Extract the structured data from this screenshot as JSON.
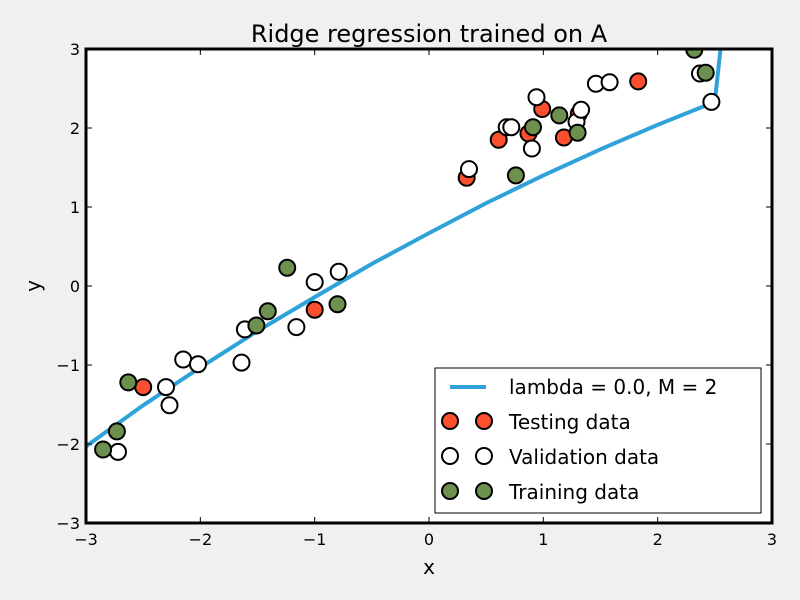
{
  "chart_data": {
    "type": "scatter",
    "title": "Ridge regression trained on A",
    "xlabel": "x",
    "ylabel": "y",
    "xlim": [
      -3,
      3
    ],
    "ylim": [
      -3,
      3
    ],
    "x_ticks": [
      -3,
      -2,
      -1,
      0,
      1,
      2,
      3
    ],
    "y_ticks": [
      -3,
      -2,
      -1,
      0,
      1,
      2,
      3
    ],
    "grid": false,
    "legend": "lower-right",
    "fit_line": {
      "name": "lambda = 0.0, M = 2",
      "color": "#30a2da",
      "x": [
        -3.0,
        -2.5,
        -2.0,
        -1.5,
        -1.0,
        -0.5,
        0.0,
        0.5,
        1.0,
        1.5,
        2.0,
        2.5,
        2.55
      ],
      "y": [
        -2.03,
        -1.51,
        -1.03,
        -0.57,
        -0.14,
        0.28,
        0.67,
        1.05,
        1.4,
        1.73,
        2.04,
        2.33,
        3.0
      ]
    },
    "series": [
      {
        "name": "Testing data",
        "color": "#fc4f30",
        "x": [
          -2.5,
          -1.0,
          0.33,
          0.61,
          0.87,
          0.99,
          1.18,
          1.31,
          1.83
        ],
        "y": [
          -1.28,
          -0.3,
          1.37,
          1.85,
          1.93,
          2.24,
          1.88,
          2.18,
          2.59
        ]
      },
      {
        "name": "Validation data",
        "color": "#ffffff",
        "x": [
          -2.72,
          -2.3,
          -2.27,
          -2.15,
          -2.02,
          -1.64,
          -1.61,
          -1.16,
          -1.0,
          -0.79,
          0.35,
          0.68,
          0.72,
          0.9,
          0.94,
          1.29,
          1.33,
          1.46,
          1.58,
          2.37,
          2.47
        ],
        "y": [
          -2.1,
          -1.28,
          -1.51,
          -0.93,
          -0.99,
          -0.97,
          -0.55,
          -0.52,
          0.05,
          0.18,
          1.48,
          2.01,
          2.01,
          1.74,
          2.39,
          2.08,
          2.23,
          2.56,
          2.58,
          2.69,
          2.33
        ]
      },
      {
        "name": "Training data",
        "color": "#6d904f",
        "x": [
          -2.85,
          -2.73,
          -2.63,
          -1.51,
          -1.41,
          -1.24,
          -0.8,
          0.76,
          0.91,
          1.14,
          1.3,
          2.32,
          2.42
        ],
        "y": [
          -2.07,
          -1.84,
          -1.22,
          -0.5,
          -0.32,
          0.23,
          -0.23,
          1.4,
          2.01,
          2.16,
          1.94,
          2.99,
          2.7
        ]
      }
    ]
  }
}
